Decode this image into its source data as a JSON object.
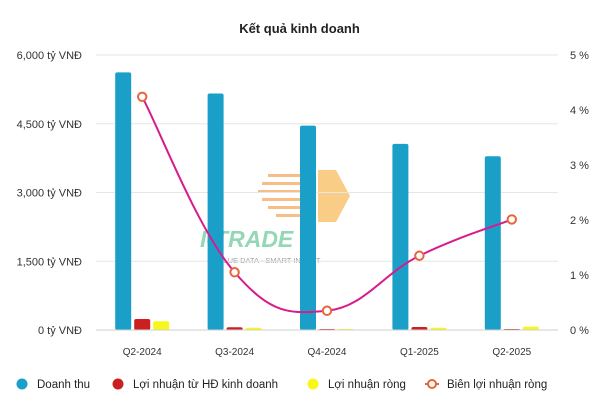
{
  "chart_data": {
    "type": "bar",
    "title": "Kết quả kinh doanh",
    "categories": [
      "Q2-2024",
      "Q3-2024",
      "Q4-2024",
      "Q1-2025",
      "Q2-2025"
    ],
    "y_left": {
      "range": [
        0,
        6000
      ],
      "ticks": [
        0,
        1500,
        3000,
        4500,
        6000
      ],
      "tick_labels": [
        "0 tỷ VNĐ",
        "1,500 tỷ VNĐ",
        "3,000 tỷ VNĐ",
        "4,500 tỷ VNĐ",
        "6,000 tỷ VNĐ"
      ]
    },
    "y_right": {
      "range": [
        0,
        5
      ],
      "ticks": [
        0,
        1,
        2,
        3,
        4,
        5
      ],
      "tick_labels": [
        "0 %",
        "1 %",
        "2 %",
        "3 %",
        "4 %",
        "5 %"
      ]
    },
    "grid": "horizontal",
    "legend_position": "bottom",
    "series": [
      {
        "name": "Doanh thu",
        "kind": "bar",
        "axis": "left",
        "color": "#1aa0c8",
        "values": [
          5620,
          5160,
          4460,
          4060,
          3790
        ]
      },
      {
        "name": "Lợi nhuận từ HĐ kinh doanh",
        "kind": "bar",
        "axis": "left",
        "color": "#cc1f1f",
        "values": [
          240,
          60,
          5,
          65,
          5
        ]
      },
      {
        "name": "Lợi nhuận ròng",
        "kind": "bar",
        "axis": "left",
        "color": "#f7f71c",
        "values": [
          190,
          50,
          5,
          50,
          75
        ]
      },
      {
        "name": "Biên lợi nhuận ròng",
        "kind": "line",
        "axis": "right",
        "color": "#d81b8c",
        "marker_color": "#e8643c",
        "values": [
          4.24,
          1.05,
          0.35,
          1.35,
          2.01
        ]
      }
    ],
    "watermark": {
      "brand": "I-TRADE",
      "tagline": "VALUE DATA - SMART INVEST"
    }
  }
}
